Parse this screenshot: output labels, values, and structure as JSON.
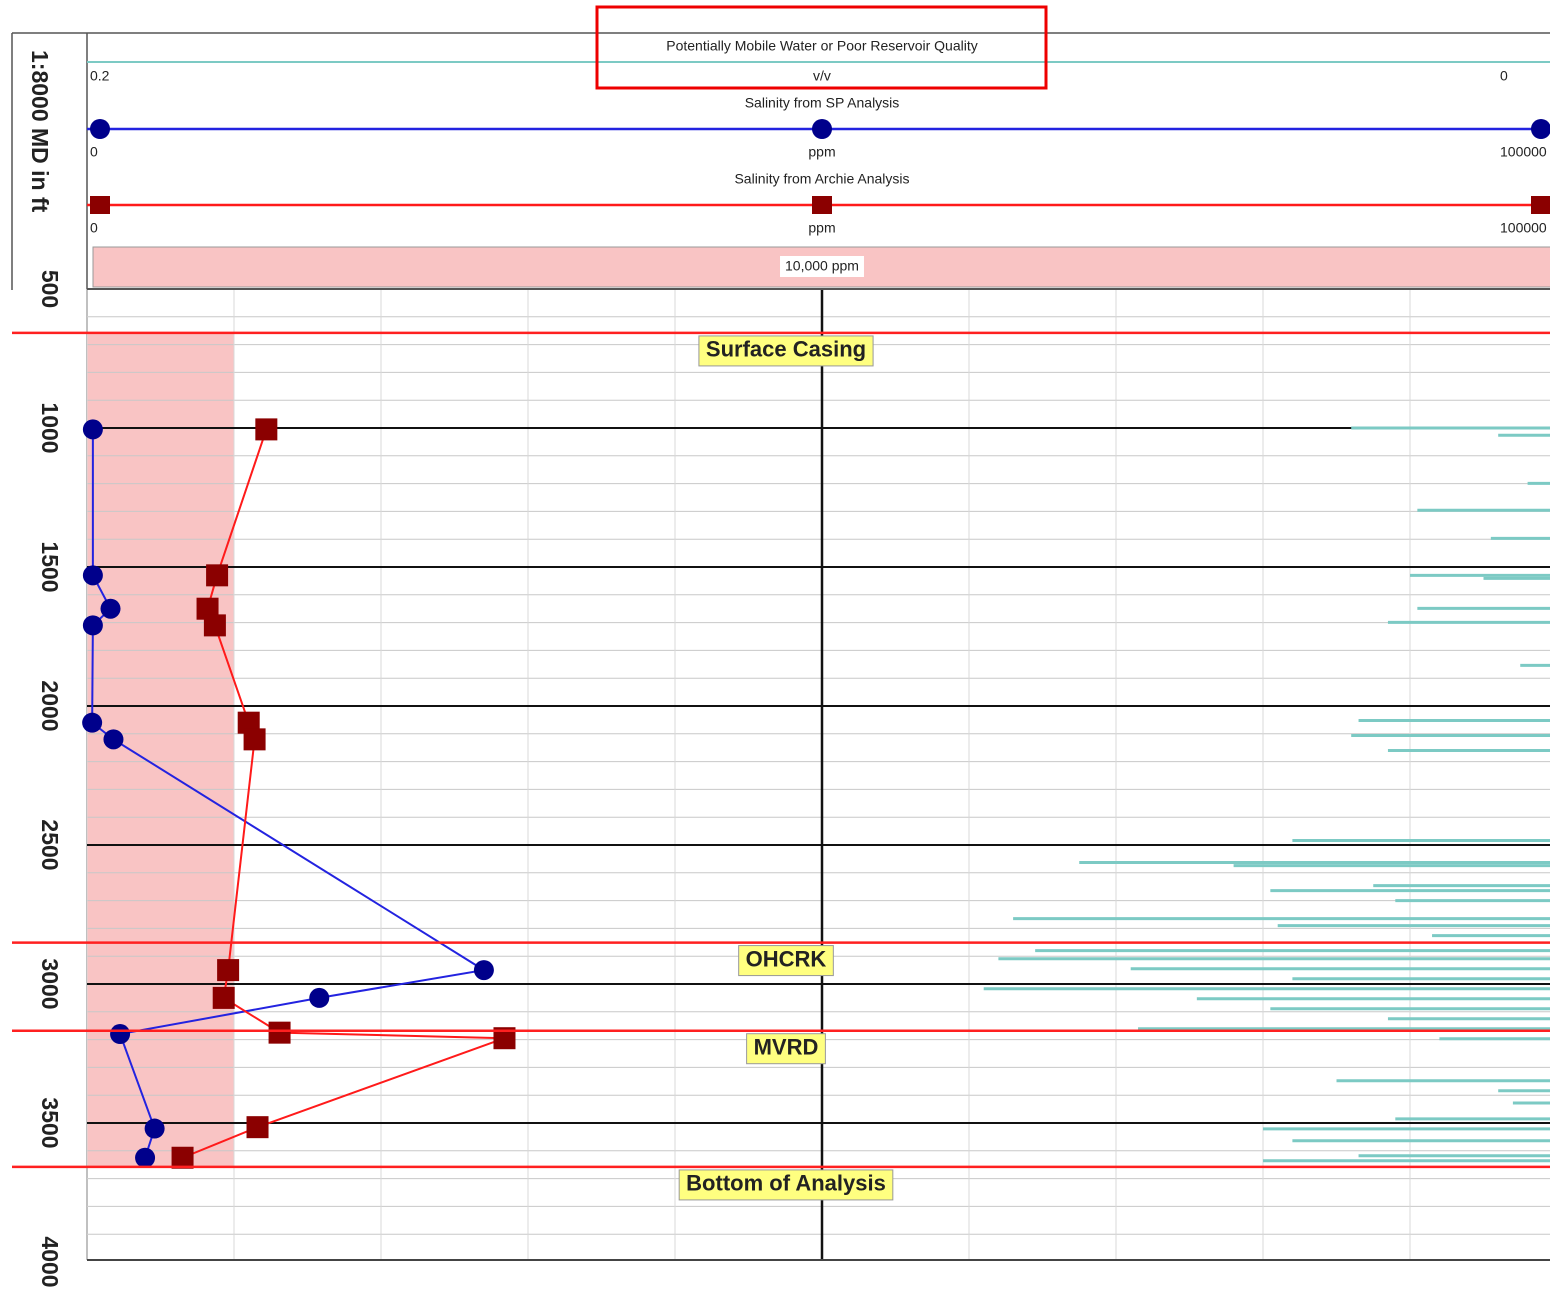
{
  "chart_data": {
    "type": "well_log",
    "depth_label": "1:8000 MD in ft",
    "ylim": [
      500,
      4000
    ],
    "yticks": [
      500,
      1000,
      1500,
      2000,
      2500,
      3000,
      3500,
      4000
    ],
    "y_minor_ticks": [
      600,
      700,
      800,
      900,
      1100,
      1200,
      1300,
      1400,
      1600,
      1700,
      1800,
      1900,
      2100,
      2200,
      2300,
      2400,
      2600,
      2700,
      2800,
      2900,
      3100,
      3200,
      3300,
      3400,
      3600,
      3700,
      3800,
      3900
    ],
    "xlim": [
      0,
      100000
    ],
    "xticks": [
      0,
      10000,
      20000,
      30000,
      40000,
      50000,
      60000,
      70000,
      80000,
      90000,
      100000
    ],
    "xticks_major": [
      50000
    ],
    "grid": true,
    "series": [
      {
        "name": "Potentially Mobile Water or Poor Reservoir Quality",
        "kind": "bar",
        "color": "#7ccac4",
        "unit": "v/v",
        "xlim": [
          0.2,
          0
        ],
        "xticks": [
          0.2,
          0
        ],
        "x": [
          0.028,
          0.008,
          0.004,
          0.019,
          0.009,
          0.02,
          0.01,
          0.019,
          0.023,
          0.005,
          0.027,
          0.028,
          0.023,
          0.036,
          0.065,
          0.044,
          0.025,
          0.039,
          0.022,
          0.074,
          0.038,
          0.017,
          0.071,
          0.076,
          0.058,
          0.036,
          0.078,
          0.049,
          0.039,
          0.023,
          0.057,
          0.016,
          0.03,
          0.008,
          0.006,
          0.022,
          0.04,
          0.036,
          0.027,
          0.04
        ],
        "y": [
          1000,
          1026,
          1199,
          1296,
          1397,
          1530,
          1541,
          1649,
          1699,
          1854,
          2052,
          2106,
          2160,
          2484,
          2563,
          2574,
          2646,
          2664,
          2700,
          2765,
          2790,
          2826,
          2880,
          2909,
          2945,
          2981,
          3017,
          3053,
          3089,
          3125,
          3161,
          3197,
          3348,
          3384,
          3428,
          3485,
          3521,
          3564,
          3618,
          3636
        ]
      },
      {
        "name": "Salinity from SP Analysis",
        "kind": "line",
        "marker": "circle",
        "color": "#2323e0",
        "marker_color": "#00008b",
        "unit": "ppm",
        "xlim": [
          0,
          100000
        ],
        "xticks": [
          0,
          100000
        ],
        "x": [
          400,
          400,
          1600,
          400,
          350,
          1800,
          27000,
          15800,
          2250,
          4600,
          3950
        ],
        "y": [
          1005,
          1530,
          1650,
          1710,
          2060,
          2120,
          2950,
          3050,
          3180,
          3520,
          3625
        ]
      },
      {
        "name": "Salinity from Archie Analysis",
        "kind": "line",
        "marker": "square",
        "color": "#ff1a1a",
        "marker_color": "#8b0000",
        "unit": "ppm",
        "xlim": [
          0,
          100000
        ],
        "xticks": [
          0,
          100000
        ],
        "x": [
          12200,
          8850,
          8200,
          8700,
          11000,
          11400,
          9600,
          9300,
          13100,
          28400,
          11600,
          6500
        ],
        "y": [
          1005,
          1530,
          1650,
          1710,
          2060,
          2120,
          2950,
          3050,
          3175,
          3195,
          3515,
          3625
        ]
      }
    ],
    "cutoff": {
      "value": 10000,
      "label": "10,000 ppm",
      "color": "#f9c4c4"
    },
    "tops": [
      {
        "label": "Surface Casing",
        "depth": 658
      },
      {
        "label": "OHCRK",
        "depth": 2851
      },
      {
        "label": "MVRD",
        "depth": 3168
      },
      {
        "label": "Bottom of Analysis",
        "depth": 3658
      }
    ]
  }
}
